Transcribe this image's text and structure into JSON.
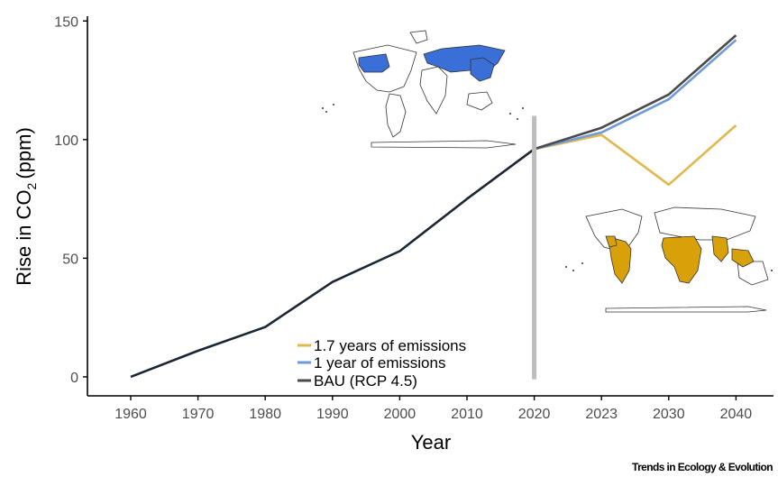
{
  "chart_data": {
    "type": "line",
    "xlabel": "Year",
    "ylabel_main": "Rise in CO",
    "ylabel_sub": "2",
    "ylabel_unit": "(ppm)",
    "categories": [
      "1960",
      "1970",
      "1980",
      "1990",
      "2000",
      "2010",
      "2020",
      "2023",
      "2030",
      "2040"
    ],
    "y_ticks": [
      0,
      50,
      100,
      150
    ],
    "ylim": [
      -8,
      152
    ],
    "grid": false,
    "legend_position": "bottom-center",
    "series": [
      {
        "name": "1.7 years of emissions",
        "color": "#e0b84e",
        "values": [
          null,
          null,
          null,
          null,
          null,
          null,
          96,
          102,
          81,
          106
        ]
      },
      {
        "name": "1 year of emissions",
        "color": "#6f99d8",
        "values": [
          null,
          null,
          null,
          null,
          null,
          null,
          96,
          103,
          117,
          142
        ]
      },
      {
        "name": "BAU (RCP 4.5)",
        "color": "#4a4a4a",
        "values": [
          null,
          null,
          null,
          null,
          null,
          null,
          96,
          105,
          119,
          144
        ]
      },
      {
        "name": "",
        "color": "#1c2533",
        "values": [
          0,
          11,
          21,
          40,
          53,
          75,
          96,
          null,
          null,
          null
        ]
      }
    ],
    "marker_year": "2020",
    "marker_color": "#bdbdbd"
  },
  "maps": {
    "top": {
      "highlight_color": "#3a6fd8"
    },
    "bottom": {
      "highlight_color": "#d8a10a"
    }
  },
  "credit": "Trends in Ecology & Evolution"
}
